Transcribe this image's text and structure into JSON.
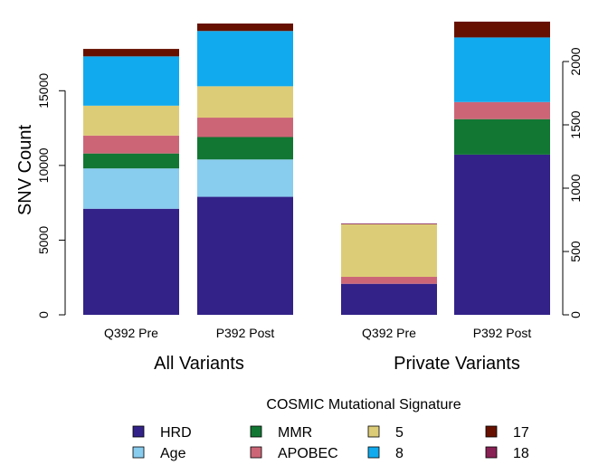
{
  "chart_data": {
    "type": "bar",
    "stacked": true,
    "ylabel": "SNV Count",
    "legend": {
      "title": "COSMIC Mutational Signature",
      "placement": "bottom"
    },
    "series": [
      {
        "name": "HRD",
        "color": "#332288"
      },
      {
        "name": "Age",
        "color": "#88CCEE"
      },
      {
        "name": "MMR",
        "color": "#117733"
      },
      {
        "name": "APOBEC",
        "color": "#CC6677"
      },
      {
        "name": "5",
        "color": "#DDCC77"
      },
      {
        "name": "8",
        "color": "#11AAEE"
      },
      {
        "name": "17",
        "color": "#661100"
      },
      {
        "name": "18",
        "color": "#882255"
      }
    ],
    "panels": [
      {
        "group_label": "All Variants",
        "axis_side": "left",
        "ylim": [
          0,
          19500
        ],
        "yticks": [
          0,
          5000,
          10000,
          15000
        ],
        "categories": [
          "Q392 Pre",
          "P392 Post"
        ],
        "values": {
          "HRD": [
            7100,
            7900
          ],
          "Age": [
            2700,
            2500
          ],
          "MMR": [
            1000,
            1500
          ],
          "APOBEC": [
            1200,
            1300
          ],
          "5": [
            2000,
            2100
          ],
          "8": [
            3300,
            3700
          ],
          "17": [
            500,
            500
          ],
          "18": [
            0,
            0
          ]
        }
      },
      {
        "group_label": "Private Variants",
        "axis_side": "right",
        "ylim": [
          0,
          2300
        ],
        "yticks": [
          0,
          500,
          1000,
          1500,
          2000
        ],
        "categories": [
          "Q392 Pre",
          "P392 Post"
        ],
        "values": {
          "HRD": [
            245,
            1265
          ],
          "Age": [
            0,
            0
          ],
          "MMR": [
            0,
            280
          ],
          "APOBEC": [
            55,
            135
          ],
          "5": [
            415,
            0
          ],
          "8": [
            0,
            510
          ],
          "17": [
            0,
            125
          ],
          "18": [
            6,
            0
          ]
        }
      }
    ]
  }
}
